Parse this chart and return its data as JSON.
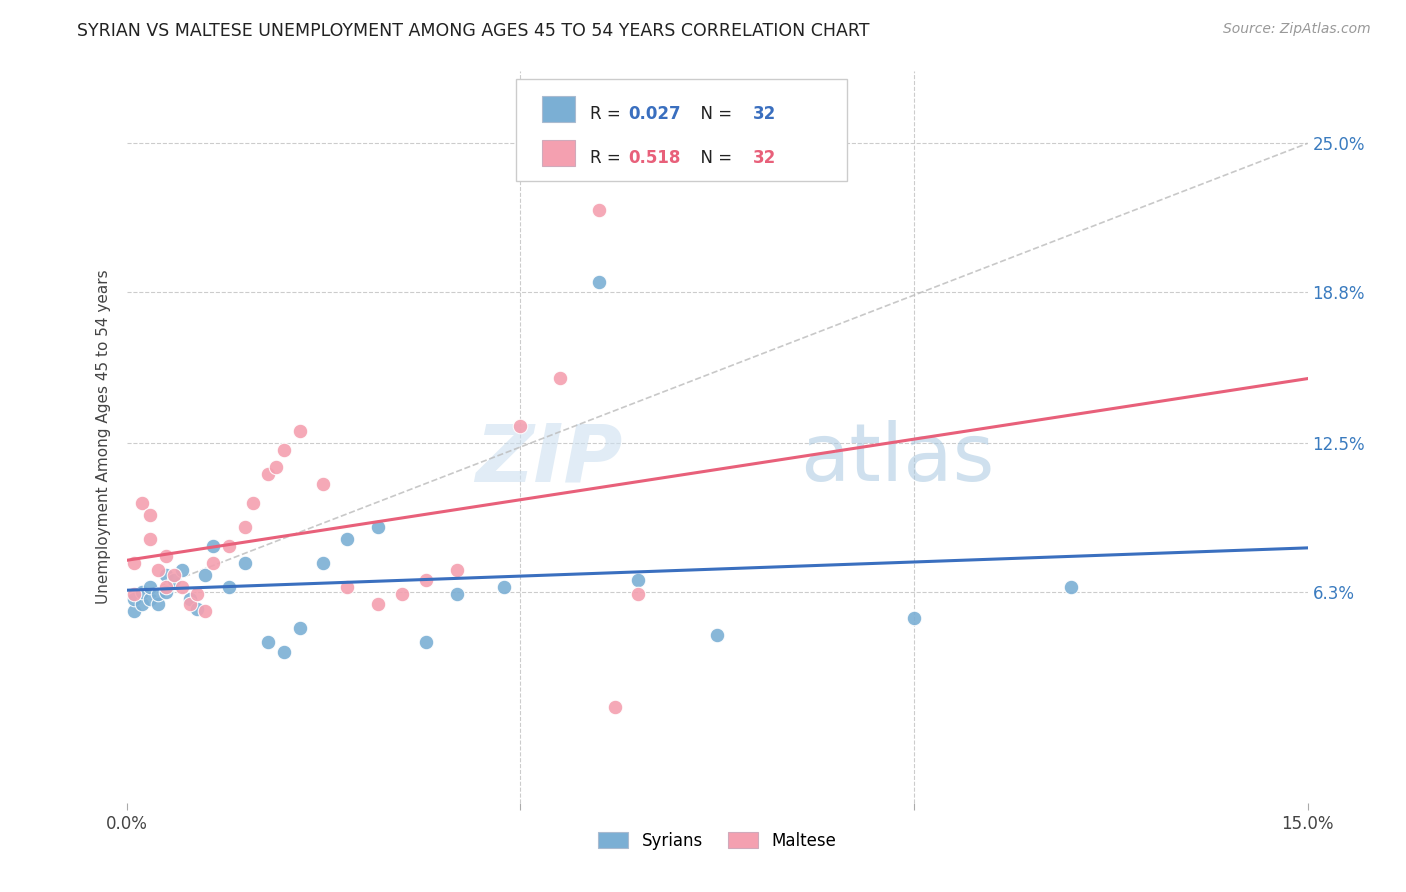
{
  "title": "SYRIAN VS MALTESE UNEMPLOYMENT AMONG AGES 45 TO 54 YEARS CORRELATION CHART",
  "source": "Source: ZipAtlas.com",
  "ylabel": "Unemployment Among Ages 45 to 54 years",
  "xlim": [
    0.0,
    0.15
  ],
  "ylim": [
    -0.025,
    0.28
  ],
  "ytick_labels": [
    "6.3%",
    "12.5%",
    "18.8%",
    "25.0%"
  ],
  "ytick_positions": [
    0.063,
    0.125,
    0.188,
    0.25
  ],
  "background_color": "#ffffff",
  "grid_color": "#cccccc",
  "syrians_R": "0.027",
  "syrians_N": "32",
  "maltese_R": "0.518",
  "maltese_N": "32",
  "syrians_color": "#7bafd4",
  "maltese_color": "#f4a0b0",
  "syrians_line_color": "#3a6fbf",
  "maltese_line_color": "#e8607a",
  "diagonal_color": "#bbbbbb",
  "legend_text_color_blue": "#3a6fbf",
  "legend_text_color_pink": "#e8607a",
  "syrians_x": [
    0.001,
    0.001,
    0.002,
    0.002,
    0.003,
    0.003,
    0.004,
    0.004,
    0.005,
    0.005,
    0.006,
    0.007,
    0.008,
    0.009,
    0.01,
    0.011,
    0.013,
    0.015,
    0.018,
    0.02,
    0.022,
    0.025,
    0.028,
    0.032,
    0.038,
    0.042,
    0.048,
    0.06,
    0.065,
    0.075,
    0.1,
    0.12
  ],
  "syrians_y": [
    0.055,
    0.06,
    0.058,
    0.063,
    0.06,
    0.065,
    0.058,
    0.062,
    0.063,
    0.07,
    0.068,
    0.072,
    0.06,
    0.056,
    0.07,
    0.082,
    0.065,
    0.075,
    0.042,
    0.038,
    0.048,
    0.075,
    0.085,
    0.09,
    0.042,
    0.062,
    0.065,
    0.192,
    0.068,
    0.045,
    0.052,
    0.065
  ],
  "maltese_x": [
    0.001,
    0.001,
    0.002,
    0.003,
    0.003,
    0.004,
    0.005,
    0.005,
    0.006,
    0.007,
    0.008,
    0.009,
    0.01,
    0.011,
    0.013,
    0.015,
    0.016,
    0.018,
    0.019,
    0.02,
    0.022,
    0.025,
    0.028,
    0.032,
    0.035,
    0.038,
    0.042,
    0.05,
    0.055,
    0.06,
    0.062,
    0.065
  ],
  "maltese_y": [
    0.062,
    0.075,
    0.1,
    0.095,
    0.085,
    0.072,
    0.078,
    0.065,
    0.07,
    0.065,
    0.058,
    0.062,
    0.055,
    0.075,
    0.082,
    0.09,
    0.1,
    0.112,
    0.115,
    0.122,
    0.13,
    0.108,
    0.065,
    0.058,
    0.062,
    0.068,
    0.072,
    0.132,
    0.152,
    0.222,
    0.015,
    0.062
  ]
}
